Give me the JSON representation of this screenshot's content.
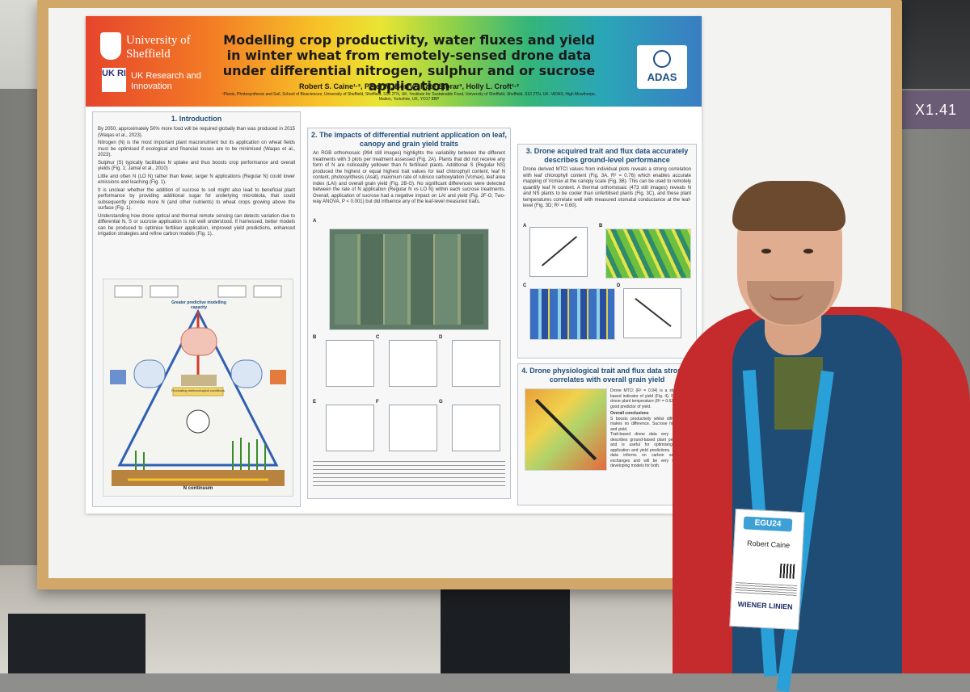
{
  "scene": {
    "room_sign": "X1.41"
  },
  "poster": {
    "institutions": {
      "university": "University of Sheffield",
      "ukri_mark": "UK RI",
      "ukri_name": "UK Research and Innovation",
      "partner": "ADAS"
    },
    "title": "Modelling crop productivity, water fluxes and yield in winter wheat from remotely-sensed drone data under differential nitrogen, sulphur and or sucrose application",
    "authors": "Robert S. Caine¹·², Peter M. Berry³, Kate Storar³, Holly L. Croft¹·²",
    "affiliations": "¹Plants, Photosynthesis and Soil, School of Biosciences, University of Sheffield, Sheffield, S10 2TN, UK. ²Institute for Sustainable Food, University of Sheffield, Sheffield, S10 2TN, UK. ³ADAS, High Mowthorpe, Malton, Yorkshire, UK, YO17 8BP",
    "sections": {
      "intro": {
        "heading": "1. Introduction",
        "bullets": [
          "By 2050, approximately 50% more food will be required globally than was produced in 2015 (Waqas et al., 2023).",
          "Nitrogen (N) is the most important plant macronutrient but its application on wheat fields must be optimised if ecological and financial losses are to be minimised (Waqas et al., 2023).",
          "Sulphur (S) typically facilitates N uptake and thus boosts crop performance and overall yields (Fig. 1; Jamal et al., 2010)",
          "Little and often N (LO N) rather than fewer, larger N applications (Regular N) could lower emissions and leaching (Fig. 1).",
          "It is unclear whether the addition of sucrose to soil might also lead to beneficial plant performance by providing additional sugar for underlying microbiota, that could subsequently provide more N (and other nutrients) to wheat crops growing above the surface (Fig. 1).",
          "Understanding how drone optical and thermal remote sensing can detects variation due to differential N, S or sucrose application is not well understood. If harnessed, better models can be produced to optimise fertiliser application, improved yield predictions, enhanced irrigation strategies and refine carbon models (Fig. 1)."
        ],
        "diagram_center": "Greater predictive modelling capacity",
        "diagram_bottom": "N continuum",
        "diagram_mid": "Fluctuating meteorological conditions"
      },
      "nutrient": {
        "heading": "2. The impacts of differential nutrient application on leaf, canopy and grain yield traits",
        "body": "An RGB orthomosaic (994 still images) highlights the variability between the different treatments with 3 plots per treatment assessed (Fig. 2A). Plants that did not receive any form of N are noticeably yellower than N fertilised plants. Additional S (Regular NS) produced the highest or equal highest trait values for leaf chlorophyll content, leaf N content, photosynthesis (Asat), maximum rate of rubisco carboxylation (Vcmax), leaf area index (LAI) and overall grain yield (Fig. 2B-G). No significant differences were detected between the rate of N application (Regular N vs LO N) within each sucrose treatments. Overall, application of sucrose had a negative impact on LAI and yield (Fig. 2F-G; Two-way ANOVA, P < 0.001) but did influence any of the leaf-level measured traits.",
        "panel_labels": [
          "A",
          "B",
          "C",
          "D",
          "E",
          "F",
          "G"
        ]
      },
      "drone": {
        "heading": "3. Drone acquired trait and flux data accurately describes ground-level performance",
        "body": "Drone derived MTCI values from individual plots reveals a strong correlation with leaf chlorophyll content (Fig. 3A, R² = 0.76) which enables accurate mapping of Vcmax at the canopy scale (Fig. 3B). This can be used to remotely quantify leaf N content. A thermal orthomosaic (473 still images) reveals N and NS plants to be cooler than unfertilised plants (Fig. 3C), and these plant temperatures correlate well with measured stomatal conductance at the leaf-level (Fig. 3D; R² = 0.60).",
        "panel_labels": [
          "A",
          "B",
          "C",
          "D"
        ]
      },
      "physio": {
        "heading": "4. Drone physiological trait and flux data strongly correlates with overall grain yield",
        "body": "Drone MTCI (R² = 0.94) is a strong trait-based indicator of yield (Fig. 4). Flux-based drone plant temperature (R² = 0.62) is also a good predictor of yield.",
        "conclusions_heading": "Overall conclusions",
        "conclusions": [
          "S boosts productivity whilst differential N makes no difference. Sucrose hinders LAI and yield.",
          "Trait-based drone data very accurately describes ground-based plant performance and is useful for optimising fertiliser application and yield predictions. Drone flux data informs on carbon and water exchanges and will be very useful for developing models for both."
        ]
      }
    }
  },
  "badge": {
    "event_logo": "EGU24",
    "person_name": "Robert Caine",
    "sponsor": "WIENER LINIEN"
  }
}
